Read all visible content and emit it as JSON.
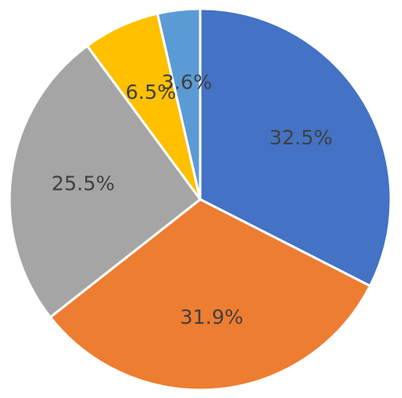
{
  "chart_data": {
    "type": "pie",
    "title": "",
    "start_angle_deg": 0,
    "direction": "clockwise",
    "legend": "none",
    "slices": [
      {
        "label": "32.5%",
        "value": 32.5,
        "color": "#4472C4"
      },
      {
        "label": "31.9%",
        "value": 31.9,
        "color": "#ED7D31"
      },
      {
        "label": "25.5%",
        "value": 25.5,
        "color": "#A5A5A5"
      },
      {
        "label": "6.5%",
        "value": 6.5,
        "color": "#FFC000"
      },
      {
        "label": "3.6%",
        "value": 3.6,
        "color": "#5B9BD5"
      }
    ]
  }
}
